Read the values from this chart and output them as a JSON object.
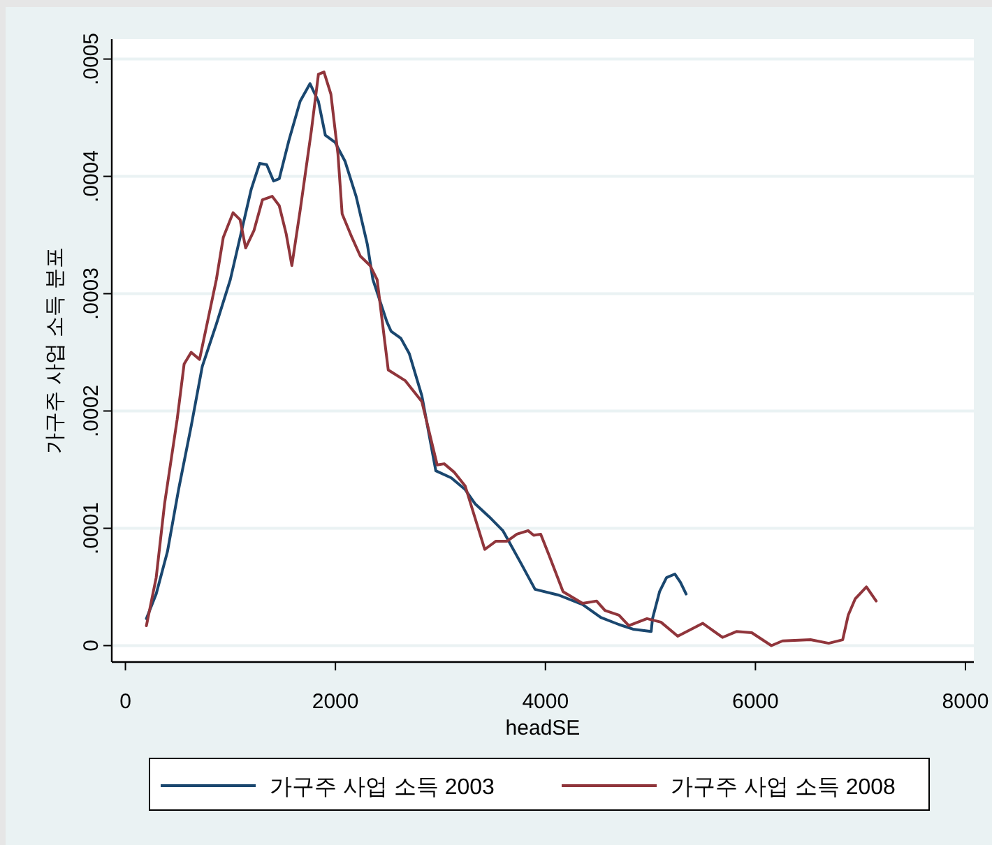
{
  "chart_data": {
    "type": "line",
    "xlabel": "headSE",
    "ylabel": "가구주 사업 소득 분포",
    "xlim": [
      -130,
      8080
    ],
    "ylim": [
      -1.4e-05,
      0.000517
    ],
    "xticks": [
      0,
      2000,
      4000,
      6000,
      8000
    ],
    "yticks": [
      {
        "value": 0,
        "label": "0"
      },
      {
        "value": 0.0001,
        "label": ".0001"
      },
      {
        "value": 0.0002,
        "label": ".0002"
      },
      {
        "value": 0.0003,
        "label": ".0003"
      },
      {
        "value": 0.0004,
        "label": ".0004"
      },
      {
        "value": 0.0005,
        "label": ".0005"
      }
    ],
    "grid": "y",
    "legend": "bottom",
    "marker": "none",
    "line_style": "solid",
    "series": [
      {
        "name": "가구주 사업 소득 2003",
        "color": "#1a476f",
        "x": [
          200,
          293,
          400,
          506,
          626,
          732,
          866,
          999,
          1092,
          1198,
          1278,
          1345,
          1411,
          1465,
          1558,
          1664,
          1758,
          1838,
          1904,
          1997,
          2091,
          2197,
          2304,
          2357,
          2490,
          2530,
          2623,
          2703,
          2823,
          2956,
          3103,
          3236,
          3329,
          3462,
          3595,
          3768,
          3901,
          4128,
          4354,
          4527,
          4700,
          4834,
          5007,
          5020,
          5087,
          5153,
          5233,
          5286,
          5340
        ],
        "values": [
          2.3e-05,
          4.4e-05,
          8e-05,
          0.000133,
          0.000187,
          0.000238,
          0.000274,
          0.000312,
          0.000348,
          0.000389,
          0.000411,
          0.00041,
          0.000396,
          0.000398,
          0.000431,
          0.000464,
          0.000479,
          0.000464,
          0.000435,
          0.000429,
          0.000413,
          0.000383,
          0.000342,
          0.000312,
          0.000276,
          0.000268,
          0.000262,
          0.000249,
          0.000213,
          0.000149,
          0.000143,
          0.000133,
          0.000121,
          0.00011,
          9.8e-05,
          7e-05,
          4.8e-05,
          4.3e-05,
          3.5e-05,
          2.4e-05,
          1.8e-05,
          1.4e-05,
          1.2e-05,
          2.3e-05,
          4.6e-05,
          5.8e-05,
          6.1e-05,
          5.4e-05,
          4.4e-05
        ]
      },
      {
        "name": "가구주 사업 소득 2008",
        "color": "#90353b",
        "x": [
          200,
          293,
          373,
          493,
          559,
          626,
          706,
          772,
          866,
          932,
          1025,
          1092,
          1145,
          1225,
          1305,
          1398,
          1465,
          1531,
          1585,
          1664,
          1771,
          1838,
          1891,
          1957,
          2024,
          2064,
          2157,
          2237,
          2330,
          2397,
          2503,
          2663,
          2823,
          2969,
          3036,
          3129,
          3236,
          3422,
          3529,
          3635,
          3728,
          3835,
          3888,
          3955,
          4035,
          4168,
          4354,
          4487,
          4567,
          4700,
          4794,
          4967,
          5100,
          5260,
          5499,
          5686,
          5819,
          5965,
          6152,
          6258,
          6525,
          6698,
          6831,
          6884,
          6951,
          7057,
          7150
        ],
        "values": [
          1.7e-05,
          5.8e-05,
          0.000121,
          0.000193,
          0.00024,
          0.00025,
          0.000244,
          0.000272,
          0.000312,
          0.000348,
          0.000369,
          0.000363,
          0.000339,
          0.000354,
          0.00038,
          0.000383,
          0.000375,
          0.000351,
          0.000324,
          0.000371,
          0.000439,
          0.000487,
          0.000489,
          0.00047,
          0.000419,
          0.000368,
          0.000348,
          0.000332,
          0.000324,
          0.000312,
          0.000235,
          0.000226,
          0.000208,
          0.000154,
          0.000155,
          0.000148,
          0.000136,
          8.2e-05,
          8.9e-05,
          8.9e-05,
          9.5e-05,
          9.8e-05,
          9.4e-05,
          9.5e-05,
          7.7e-05,
          4.6e-05,
          3.6e-05,
          3.8e-05,
          3e-05,
          2.6e-05,
          1.7e-05,
          2.3e-05,
          2e-05,
          8e-06,
          1.9e-05,
          7e-06,
          1.2e-05,
          1.1e-05,
          0,
          4e-06,
          5e-06,
          2e-06,
          5e-06,
          2.6e-05,
          4e-05,
          5e-05,
          3.8e-05
        ]
      }
    ]
  }
}
